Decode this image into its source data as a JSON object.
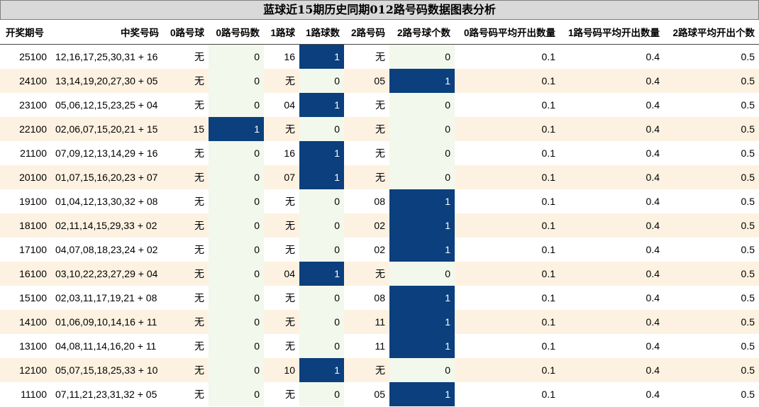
{
  "title": "蓝球近15期历史同期012路号码数据图表分析",
  "headers": [
    "开奖期号",
    "中奖号码",
    "0路号球",
    "0路号码数",
    "1路球",
    "1路球数",
    "2路号码",
    "2路号球个数",
    "0路号码平均开出数量",
    "1路号码平均开出数量",
    "2路球平均开出个数"
  ],
  "rows": [
    [
      "25100",
      "12,16,17,25,30,31 + 16",
      "无",
      "0",
      "16",
      "1",
      "无",
      "0",
      "0.1",
      "0.4",
      "0.5"
    ],
    [
      "24100",
      "13,14,19,20,27,30 + 05",
      "无",
      "0",
      "无",
      "0",
      "05",
      "1",
      "0.1",
      "0.4",
      "0.5"
    ],
    [
      "23100",
      "05,06,12,15,23,25 + 04",
      "无",
      "0",
      "04",
      "1",
      "无",
      "0",
      "0.1",
      "0.4",
      "0.5"
    ],
    [
      "22100",
      "02,06,07,15,20,21 + 15",
      "15",
      "1",
      "无",
      "0",
      "无",
      "0",
      "0.1",
      "0.4",
      "0.5"
    ],
    [
      "21100",
      "07,09,12,13,14,29 + 16",
      "无",
      "0",
      "16",
      "1",
      "无",
      "0",
      "0.1",
      "0.4",
      "0.5"
    ],
    [
      "20100",
      "01,07,15,16,20,23 + 07",
      "无",
      "0",
      "07",
      "1",
      "无",
      "0",
      "0.1",
      "0.4",
      "0.5"
    ],
    [
      "19100",
      "01,04,12,13,30,32 + 08",
      "无",
      "0",
      "无",
      "0",
      "08",
      "1",
      "0.1",
      "0.4",
      "0.5"
    ],
    [
      "18100",
      "02,11,14,15,29,33 + 02",
      "无",
      "0",
      "无",
      "0",
      "02",
      "1",
      "0.1",
      "0.4",
      "0.5"
    ],
    [
      "17100",
      "04,07,08,18,23,24 + 02",
      "无",
      "0",
      "无",
      "0",
      "02",
      "1",
      "0.1",
      "0.4",
      "0.5"
    ],
    [
      "16100",
      "03,10,22,23,27,29 + 04",
      "无",
      "0",
      "04",
      "1",
      "无",
      "0",
      "0.1",
      "0.4",
      "0.5"
    ],
    [
      "15100",
      "02,03,11,17,19,21 + 08",
      "无",
      "0",
      "无",
      "0",
      "08",
      "1",
      "0.1",
      "0.4",
      "0.5"
    ],
    [
      "14100",
      "01,06,09,10,14,16 + 11",
      "无",
      "0",
      "无",
      "0",
      "11",
      "1",
      "0.1",
      "0.4",
      "0.5"
    ],
    [
      "13100",
      "04,08,11,14,16,20 + 11",
      "无",
      "0",
      "无",
      "0",
      "11",
      "1",
      "0.1",
      "0.4",
      "0.5"
    ],
    [
      "12100",
      "05,07,15,18,25,33 + 10",
      "无",
      "0",
      "10",
      "1",
      "无",
      "0",
      "0.1",
      "0.4",
      "0.5"
    ],
    [
      "11100",
      "07,11,21,23,31,32 + 05",
      "无",
      "0",
      "无",
      "0",
      "05",
      "1",
      "0.1",
      "0.4",
      "0.5"
    ]
  ],
  "colors": {
    "highlight": "#0b3f7d",
    "highlight_text": "#ffffff",
    "count_column_bg": "#f2f8ec",
    "alt_row_bg": "#fdf2e1",
    "title_bg": "#d9d9d9"
  }
}
